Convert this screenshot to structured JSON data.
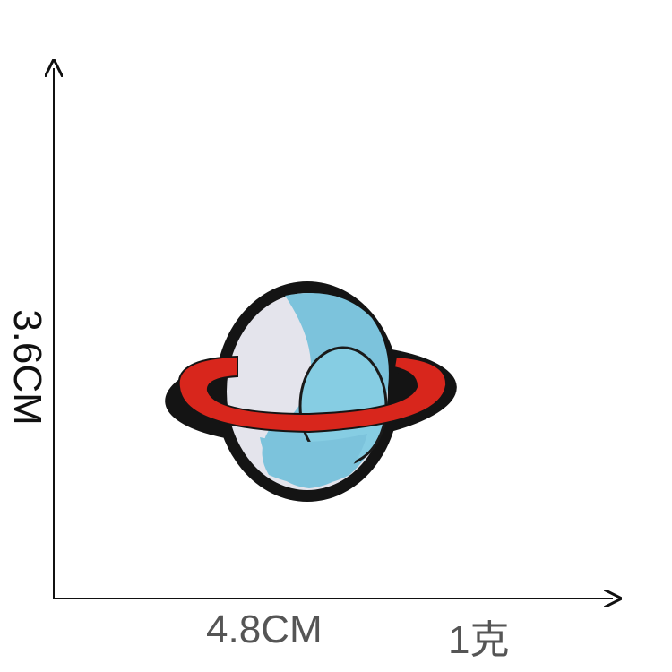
{
  "dimensions": {
    "width_label": "4.8CM",
    "height_label": "3.6CM"
  },
  "weight_label": "1克",
  "colors": {
    "outline": "#111111",
    "planet_light": "#e4e4ec",
    "planet_blue": "#7cc3dc",
    "ring": "#d8261c",
    "label_gray": "#555555"
  },
  "subject": {
    "icon": "planet-patch-icon"
  }
}
